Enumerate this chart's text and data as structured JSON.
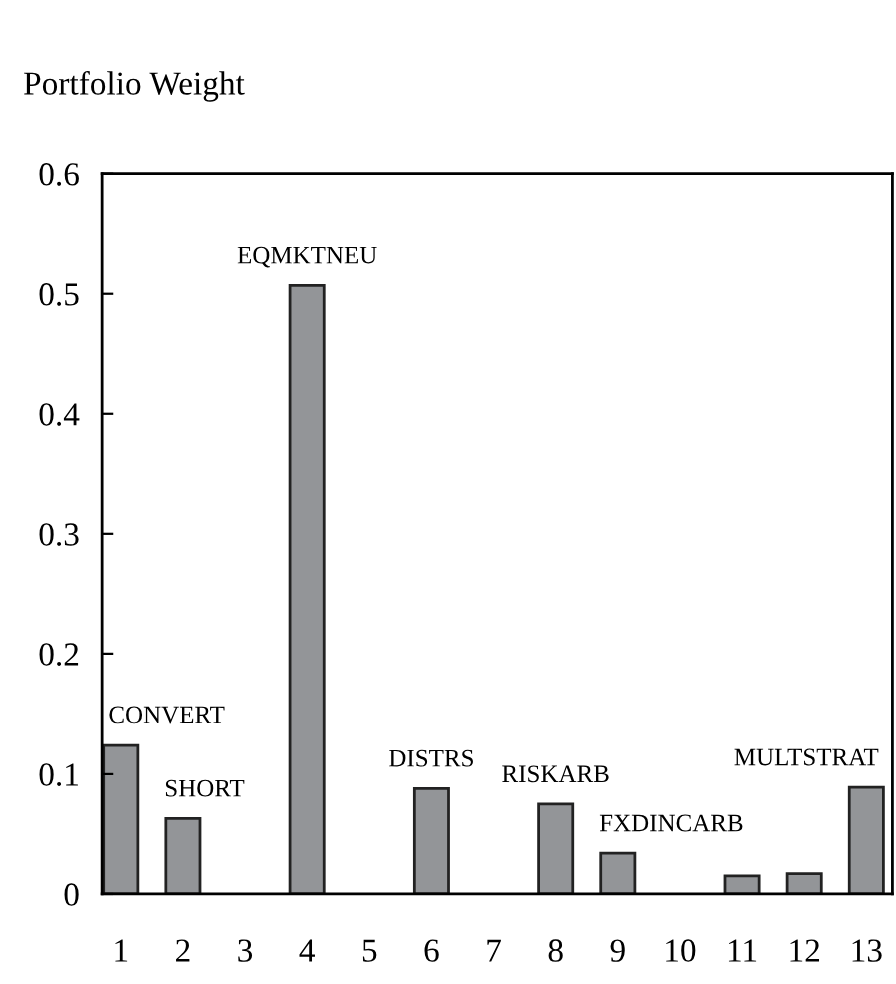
{
  "chart_data": {
    "type": "bar",
    "ylabel": "Portfolio Weight",
    "categories": [
      "1",
      "2",
      "3",
      "4",
      "5",
      "6",
      "7",
      "8",
      "9",
      "10",
      "11",
      "12",
      "13"
    ],
    "values": [
      0.124,
      0.063,
      0,
      0.507,
      0,
      0.088,
      0,
      0.075,
      0.034,
      0,
      0.015,
      0.017,
      0.089
    ],
    "color": "#939598",
    "ylim": [
      0,
      0.6
    ],
    "yticks": [
      0,
      0.1,
      0.2,
      0.3,
      0.4,
      0.5,
      0.6
    ],
    "annotations": [
      {
        "text": "CONVERT",
        "x": "1",
        "y": 0.124
      },
      {
        "text": "SHORT",
        "x": "2",
        "y": 0.063
      },
      {
        "text": "EQMKTNEU",
        "x": "4",
        "y": 0.507
      },
      {
        "text": "DISTRS",
        "x": "6",
        "y": 0.088
      },
      {
        "text": "RISKARB",
        "x": "8",
        "y": 0.075
      },
      {
        "text": "FXDINCARB",
        "x": "9",
        "y": 0.034
      },
      {
        "text": "MULTSTRAT",
        "x": "13",
        "y": 0.089
      }
    ],
    "grid": false,
    "legend": false
  }
}
